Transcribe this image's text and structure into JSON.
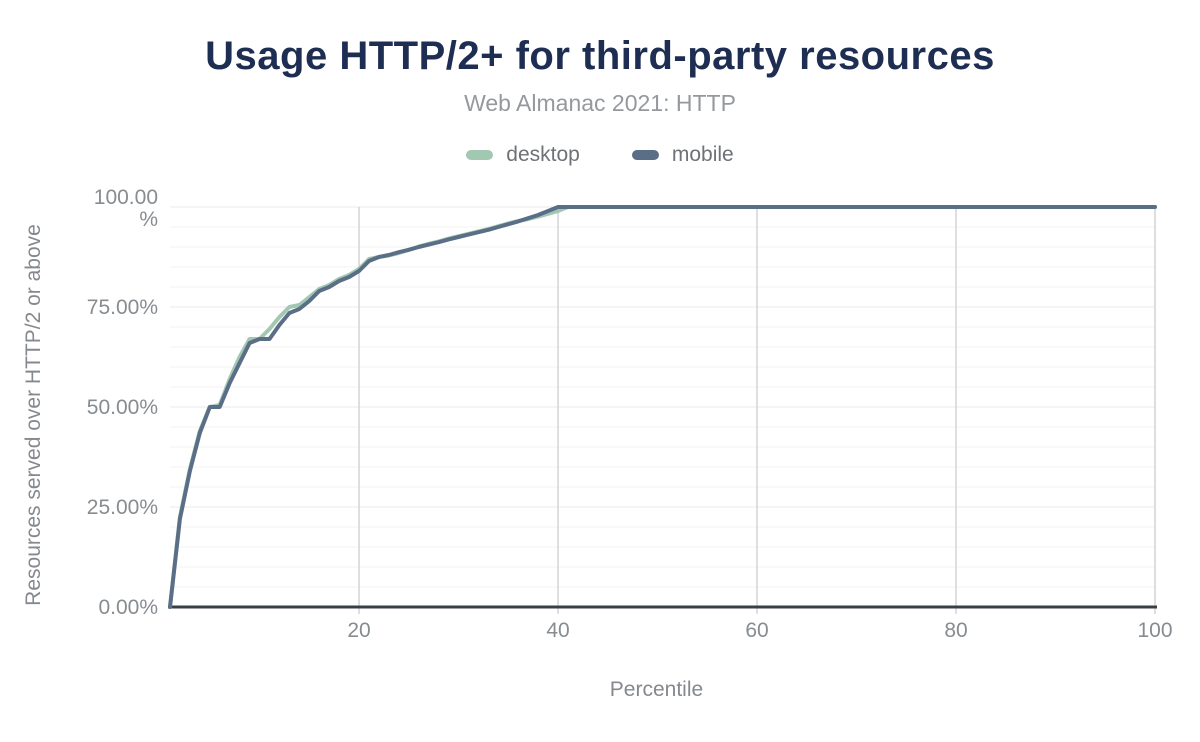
{
  "header": {
    "title": "Usage HTTP/2+ for third-party resources",
    "subtitle": "Web Almanac 2021: HTTP"
  },
  "legend": [
    {
      "label": "desktop",
      "color": "#a2c8b2"
    },
    {
      "label": "mobile",
      "color": "#5a6e87"
    }
  ],
  "colors": {
    "title_text": "#1e2d52",
    "subtitle_text": "#95999d",
    "tick_text": "#878c90",
    "axis_label_text": "#85898d",
    "legend_text": "#6e7277",
    "axis_line": "#373f47",
    "grid_minor": "#f3f3f3",
    "grid_major": "#e8e8e8",
    "grid_vertical": "#d4d4d4",
    "desktop_line": "#a2c8b2",
    "mobile_line": "#5a6e87"
  },
  "chart_data": {
    "type": "line",
    "title": "Usage HTTP/2+ for third-party resources",
    "subtitle": "Web Almanac 2021: HTTP",
    "xlabel": "Percentile",
    "ylabel": "Resources served over HTTP/2 or above",
    "xlim": [
      1,
      100
    ],
    "ylim": [
      0,
      100
    ],
    "x_ticks": [
      20,
      40,
      60,
      80,
      100
    ],
    "y_ticks": [
      {
        "value": 0,
        "lines": [
          "0.00%"
        ]
      },
      {
        "value": 25,
        "lines": [
          "25.00%"
        ]
      },
      {
        "value": 50,
        "lines": [
          "50.00%"
        ]
      },
      {
        "value": 75,
        "lines": [
          "75.00%"
        ]
      },
      {
        "value": 100,
        "lines": [
          "100.00",
          "%"
        ]
      }
    ],
    "grid": {
      "vertical": true,
      "horizontal_major_step": 25,
      "horizontal_minor_step": 5
    },
    "legend_position": "top",
    "x": [
      1,
      2,
      3,
      4,
      5,
      6,
      7,
      8,
      9,
      10,
      11,
      12,
      13,
      14,
      15,
      16,
      17,
      18,
      19,
      20,
      21,
      22,
      23,
      24,
      25,
      26,
      27,
      28,
      29,
      30,
      31,
      32,
      33,
      34,
      35,
      36,
      37,
      38,
      39,
      40,
      41,
      42,
      43,
      44,
      45,
      46,
      47,
      48,
      49,
      50,
      51,
      52,
      53,
      54,
      55,
      56,
      57,
      58,
      59,
      60,
      61,
      62,
      63,
      64,
      65,
      66,
      67,
      68,
      69,
      70,
      71,
      72,
      73,
      74,
      75,
      76,
      77,
      78,
      79,
      80,
      81,
      82,
      83,
      84,
      85,
      86,
      87,
      88,
      89,
      90,
      91,
      92,
      93,
      94,
      95,
      96,
      97,
      98,
      99,
      100
    ],
    "series": [
      {
        "name": "desktop",
        "color": "#a2c8b2",
        "values": [
          0,
          22.5,
          34.5,
          44,
          50,
          50.5,
          57,
          62.5,
          67,
          67,
          69.5,
          72.5,
          75,
          75.5,
          77.5,
          79.5,
          80.5,
          82,
          83,
          84.5,
          87,
          87.5,
          87.9,
          88.5,
          89.3,
          90.1,
          90.8,
          91.4,
          92.1,
          92.7,
          93.3,
          93.9,
          94.5,
          95.2,
          95.9,
          96.5,
          97,
          97.6,
          98.3,
          99,
          100,
          100,
          100,
          100,
          100,
          100,
          100,
          100,
          100,
          100,
          100,
          100,
          100,
          100,
          100,
          100,
          100,
          100,
          100,
          100,
          100,
          100,
          100,
          100,
          100,
          100,
          100,
          100,
          100,
          100,
          100,
          100,
          100,
          100,
          100,
          100,
          100,
          100,
          100,
          100,
          100,
          100,
          100,
          100,
          100,
          100,
          100,
          100,
          100,
          100,
          100,
          100,
          100,
          100,
          100,
          100,
          100,
          100,
          100,
          100
        ]
      },
      {
        "name": "mobile",
        "color": "#5a6e87",
        "values": [
          0,
          22,
          34,
          43.5,
          50,
          50,
          56,
          61,
          66,
          67,
          67,
          70.5,
          73.5,
          74.5,
          76.5,
          79,
          80,
          81.5,
          82.5,
          84,
          86.5,
          87.5,
          88,
          88.7,
          89.3,
          90,
          90.6,
          91.2,
          91.9,
          92.5,
          93.1,
          93.7,
          94.3,
          95,
          95.7,
          96.4,
          97.2,
          98,
          99,
          100,
          100,
          100,
          100,
          100,
          100,
          100,
          100,
          100,
          100,
          100,
          100,
          100,
          100,
          100,
          100,
          100,
          100,
          100,
          100,
          100,
          100,
          100,
          100,
          100,
          100,
          100,
          100,
          100,
          100,
          100,
          100,
          100,
          100,
          100,
          100,
          100,
          100,
          100,
          100,
          100,
          100,
          100,
          100,
          100,
          100,
          100,
          100,
          100,
          100,
          100,
          100,
          100,
          100,
          100,
          100,
          100,
          100,
          100,
          100,
          100
        ]
      }
    ]
  }
}
